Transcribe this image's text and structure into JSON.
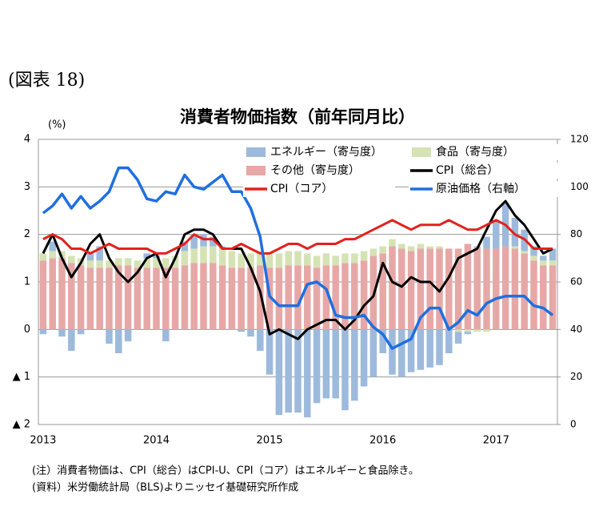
{
  "header": {
    "figure": "(図表 18)"
  },
  "chart_data": {
    "type": "bar-line",
    "title": "消費者物価指数（前年同月比）",
    "y_unit": "(%)",
    "categories": [
      "2013",
      null,
      null,
      null,
      null,
      null,
      null,
      null,
      null,
      null,
      null,
      null,
      "2014",
      null,
      null,
      null,
      null,
      null,
      null,
      null,
      null,
      null,
      null,
      null,
      "2015",
      null,
      null,
      null,
      null,
      null,
      null,
      null,
      null,
      null,
      null,
      null,
      "2016",
      null,
      null,
      null,
      null,
      null,
      null,
      null,
      null,
      null,
      null,
      null,
      "2017",
      null,
      null,
      null,
      null,
      null,
      null
    ],
    "ylim": [
      -2,
      4
    ],
    "yticks": [
      {
        "value": -2,
        "label": "▲ 2"
      },
      {
        "value": -1,
        "label": "▲ 1"
      },
      0,
      1,
      2,
      3,
      4
    ],
    "y2lim": [
      0,
      120
    ],
    "y2ticks": [
      0,
      20,
      40,
      60,
      80,
      100,
      120
    ],
    "grid": true,
    "series": [
      {
        "name": "その他（寄与度）",
        "kind": "bar",
        "color": "#e6a8a6",
        "values": [
          1.45,
          1.5,
          1.5,
          1.4,
          1.35,
          1.3,
          1.3,
          1.3,
          1.35,
          1.35,
          1.3,
          1.3,
          1.3,
          1.3,
          1.3,
          1.35,
          1.4,
          1.4,
          1.4,
          1.35,
          1.3,
          1.3,
          1.3,
          1.35,
          1.3,
          1.3,
          1.35,
          1.35,
          1.35,
          1.3,
          1.35,
          1.35,
          1.4,
          1.4,
          1.45,
          1.55,
          1.6,
          1.75,
          1.7,
          1.65,
          1.7,
          1.7,
          1.7,
          1.7,
          1.7,
          1.8,
          1.75,
          1.7,
          1.7,
          1.75,
          1.7,
          1.6,
          1.45,
          1.35,
          1.35
        ]
      },
      {
        "name": "食品（寄与度）",
        "kind": "bar",
        "color": "#d5e3b4",
        "values": [
          0.15,
          0.15,
          0.15,
          0.15,
          0.15,
          0.15,
          0.15,
          0.15,
          0.15,
          0.15,
          0.15,
          0.2,
          0.2,
          0.2,
          0.25,
          0.3,
          0.3,
          0.35,
          0.35,
          0.35,
          0.35,
          0.3,
          0.3,
          0.3,
          0.3,
          0.3,
          0.3,
          0.3,
          0.25,
          0.25,
          0.25,
          0.2,
          0.2,
          0.2,
          0.2,
          0.15,
          0.15,
          0.15,
          0.1,
          0.1,
          0.1,
          0.05,
          0.05,
          0.0,
          -0.05,
          -0.05,
          -0.05,
          -0.05,
          0.0,
          0.0,
          0.05,
          0.05,
          0.1,
          0.1,
          0.1
        ]
      },
      {
        "name": "エネルギー（寄与度）",
        "kind": "bar",
        "color": "#9dbadc",
        "values": [
          -0.1,
          0.2,
          -0.15,
          -0.45,
          -0.1,
          0.15,
          0.3,
          -0.3,
          -0.5,
          -0.25,
          0.0,
          0.1,
          0.05,
          -0.25,
          0.0,
          0.2,
          0.3,
          0.25,
          0.2,
          0.05,
          0.0,
          -0.05,
          -0.15,
          -0.45,
          -0.95,
          -1.8,
          -1.75,
          -1.75,
          -1.85,
          -1.55,
          -1.45,
          -1.45,
          -1.7,
          -1.5,
          -1.2,
          -1.0,
          -0.5,
          -0.95,
          -1.0,
          -0.9,
          -0.85,
          -0.8,
          -0.75,
          -0.5,
          -0.25,
          -0.05,
          0.0,
          0.25,
          0.6,
          0.9,
          0.6,
          0.45,
          0.2,
          0.1,
          0.25
        ]
      },
      {
        "name": "CPI（総合）",
        "kind": "line",
        "color": "#000000",
        "values": [
          1.6,
          2.0,
          1.5,
          1.1,
          1.4,
          1.8,
          2.0,
          1.5,
          1.2,
          1.0,
          1.2,
          1.5,
          1.6,
          1.1,
          1.5,
          2.0,
          2.1,
          2.1,
          2.0,
          1.7,
          1.7,
          1.7,
          1.3,
          0.8,
          -0.1,
          0.0,
          -0.1,
          -0.2,
          0.0,
          0.1,
          0.2,
          0.2,
          0.0,
          0.2,
          0.5,
          0.7,
          1.4,
          1.0,
          0.9,
          1.1,
          1.0,
          1.0,
          0.8,
          1.1,
          1.5,
          1.6,
          1.7,
          2.1,
          2.5,
          2.7,
          2.4,
          2.2,
          1.9,
          1.6,
          1.7
        ]
      },
      {
        "name": "CPI（コア）",
        "kind": "line",
        "color": "#e3211c",
        "values": [
          1.9,
          2.0,
          1.9,
          1.7,
          1.7,
          1.6,
          1.7,
          1.8,
          1.7,
          1.7,
          1.7,
          1.7,
          1.6,
          1.6,
          1.7,
          1.8,
          2.0,
          1.9,
          1.9,
          1.7,
          1.7,
          1.8,
          1.7,
          1.6,
          1.6,
          1.7,
          1.8,
          1.8,
          1.7,
          1.8,
          1.8,
          1.8,
          1.9,
          1.9,
          2.0,
          2.1,
          2.2,
          2.3,
          2.2,
          2.1,
          2.2,
          2.2,
          2.2,
          2.3,
          2.2,
          2.1,
          2.1,
          2.2,
          2.3,
          2.2,
          2.0,
          1.9,
          1.7,
          1.7,
          1.7
        ]
      },
      {
        "name": "原油価格（右軸）",
        "kind": "line",
        "axis": "y2",
        "color": "#1f6fe0",
        "values": [
          89,
          92,
          97,
          91,
          96,
          91,
          94,
          98,
          108,
          108,
          103,
          95,
          94,
          98,
          97,
          105,
          100,
          99,
          102,
          105,
          98,
          98,
          91,
          79,
          54,
          50,
          50,
          50,
          59,
          60,
          57,
          46,
          45,
          45,
          46,
          41,
          38,
          32,
          34,
          36,
          45,
          49,
          49,
          40,
          43,
          48,
          46,
          51,
          53,
          54,
          54,
          54,
          50,
          49,
          46
        ]
      }
    ]
  },
  "notes": [
    "(注）消費者物価は、CPI（総合）はCPI-U、CPI（コア）はエネルギーと食品除き。",
    "(資料）米労働統計局（BLS)よりニッセイ基礎研究所作成"
  ]
}
